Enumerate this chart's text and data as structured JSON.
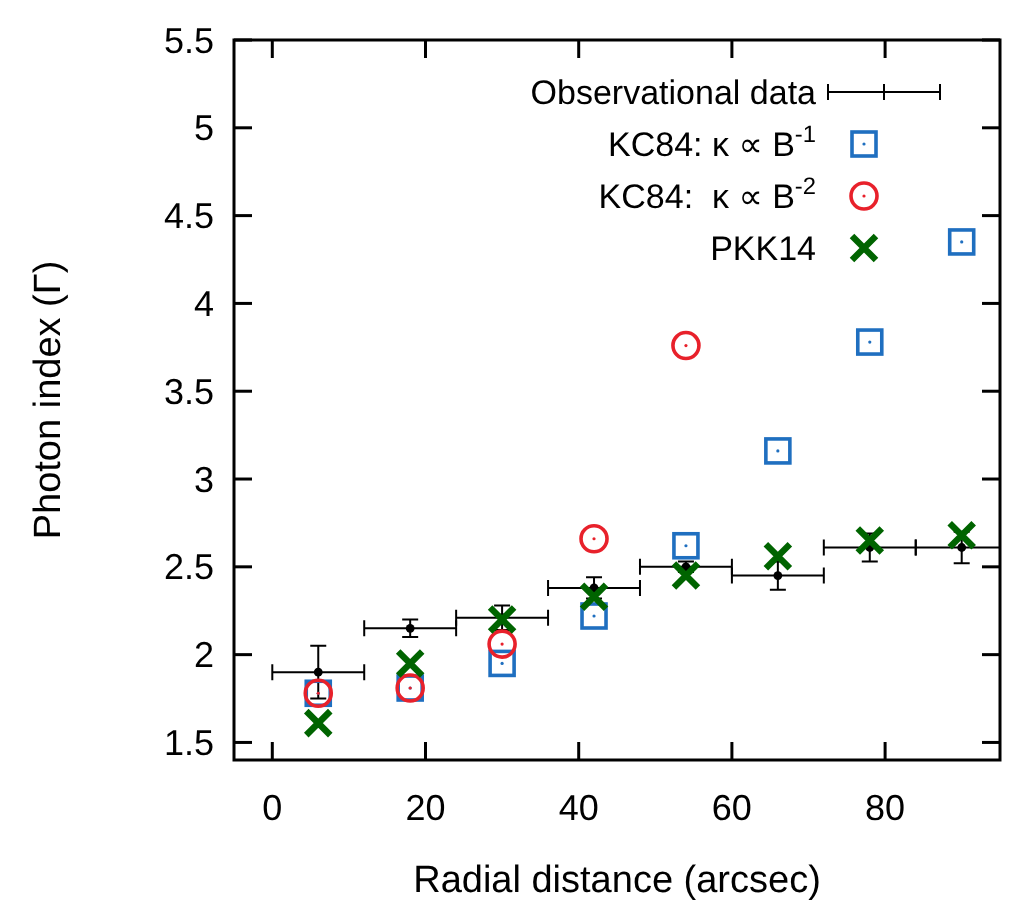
{
  "chart_data": {
    "type": "scatter",
    "xlabel": "Radial distance (arcsec)",
    "ylabel": "Photon index (Γ)",
    "x": [
      6,
      18,
      30,
      42,
      54,
      66,
      78,
      90
    ],
    "xlim": [
      -5,
      95
    ],
    "ylim": [
      1.4,
      5.5
    ],
    "xticks": [
      0,
      20,
      40,
      60,
      80
    ],
    "yticks": [
      1.5,
      2,
      2.5,
      3,
      3.5,
      4,
      4.5,
      5,
      5.5
    ],
    "grid": false,
    "legend": "top right",
    "series": [
      {
        "name": "Observational data",
        "color": "#000000",
        "values": [
          1.9,
          2.15,
          2.21,
          2.38,
          2.5,
          2.45,
          2.61,
          2.61
        ],
        "errors": [
          0.15,
          0.05,
          0.07,
          0.06,
          0.03,
          0.08,
          0.08,
          0.09
        ],
        "xerrors": [
          [
            0,
            12
          ],
          [
            12,
            24
          ],
          [
            24,
            36
          ],
          [
            36,
            48
          ],
          [
            48,
            60
          ],
          [
            60,
            72
          ],
          [
            72,
            84
          ],
          [
            84,
            95
          ]
        ]
      },
      {
        "name": "KC84: κ ∝ B$^{-1}$",
        "color": "#1f6fc0",
        "marker": "square",
        "values": [
          1.78,
          1.81,
          1.95,
          2.22,
          2.62,
          3.16,
          3.78,
          4.35
        ]
      },
      {
        "name": "KC84:  κ ∝ B$^{-2}$",
        "color": "#e8212b",
        "marker": "circle",
        "x": [
          6,
          18,
          30,
          42,
          54
        ],
        "values": [
          1.78,
          1.81,
          2.06,
          2.66,
          3.76
        ]
      },
      {
        "name": "PKK14",
        "color": "#006400",
        "marker": "cross",
        "values": [
          1.61,
          1.95,
          2.2,
          2.33,
          2.45,
          2.56,
          2.65,
          2.68
        ]
      }
    ]
  }
}
